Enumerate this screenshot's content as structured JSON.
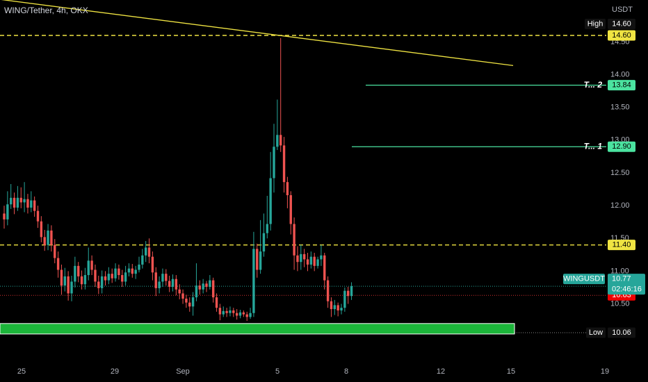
{
  "symbol_title": "WING/Tether, 4h, OKX",
  "currency": "USDT",
  "colors": {
    "up": "#26a69a",
    "down": "#ef5350",
    "trendline": "#f0e442",
    "level_dashed": "#f0e442",
    "target_line": "#4be3a0",
    "support_zone": "#1cb53a",
    "current_price": "#26a69a",
    "red_line": "#d32f2f"
  },
  "chart_data": {
    "type": "candlestick",
    "y_axis_ticks": [
      "10.50",
      "11.00",
      "11.50",
      "12.00",
      "12.50",
      "13.00",
      "13.50",
      "14.00",
      "14.50"
    ],
    "x_axis_ticks": [
      "25",
      "29",
      "Sep",
      "5",
      "8",
      "12",
      "15",
      "19"
    ],
    "ylim": [
      9.6,
      15.2
    ],
    "candles": [
      [
        11.88,
        11.79,
        12.0,
        11.65
      ],
      [
        11.79,
        12.02,
        12.22,
        11.7
      ],
      [
        12.02,
        12.12,
        12.33,
        11.95
      ],
      [
        12.12,
        11.97,
        12.2,
        11.87
      ],
      [
        11.97,
        12.12,
        12.3,
        11.92
      ],
      [
        12.12,
        12.05,
        12.28,
        11.96
      ],
      [
        12.05,
        12.1,
        12.36,
        11.9
      ],
      [
        12.1,
        11.97,
        12.18,
        11.88
      ],
      [
        11.97,
        12.08,
        12.22,
        11.9
      ],
      [
        12.08,
        11.92,
        12.14,
        11.83
      ],
      [
        11.92,
        11.76,
        12.0,
        11.66
      ],
      [
        11.76,
        11.52,
        11.84,
        11.44
      ],
      [
        11.52,
        11.4,
        11.63,
        11.31
      ],
      [
        11.4,
        11.62,
        11.72,
        11.32
      ],
      [
        11.62,
        11.4,
        11.7,
        11.3
      ],
      [
        11.4,
        11.2,
        11.49,
        11.12
      ],
      [
        11.2,
        11.02,
        11.3,
        10.9
      ],
      [
        11.02,
        10.78,
        11.1,
        10.64
      ],
      [
        10.78,
        10.92,
        11.05,
        10.69
      ],
      [
        10.92,
        10.66,
        11.0,
        10.55
      ],
      [
        10.66,
        10.84,
        10.93,
        10.54
      ],
      [
        10.84,
        11.08,
        11.22,
        10.75
      ],
      [
        11.08,
        10.92,
        11.14,
        10.83
      ],
      [
        10.92,
        10.8,
        11.01,
        10.72
      ],
      [
        10.8,
        10.94,
        11.05,
        10.72
      ],
      [
        10.94,
        11.16,
        11.36,
        10.86
      ],
      [
        11.16,
        11.02,
        11.24,
        10.94
      ],
      [
        11.02,
        10.84,
        11.1,
        10.76
      ],
      [
        10.84,
        10.74,
        10.93,
        10.65
      ],
      [
        10.74,
        10.92,
        11.01,
        10.66
      ],
      [
        10.92,
        10.86,
        11.0,
        10.78
      ],
      [
        10.86,
        10.96,
        11.06,
        10.8
      ],
      [
        10.96,
        10.89,
        11.04,
        10.82
      ],
      [
        10.89,
        11.04,
        11.12,
        10.84
      ],
      [
        11.04,
        10.94,
        11.1,
        10.87
      ],
      [
        10.94,
        10.84,
        11.02,
        10.76
      ],
      [
        10.84,
        10.98,
        11.08,
        10.78
      ],
      [
        10.98,
        11.04,
        11.12,
        10.92
      ],
      [
        11.04,
        10.96,
        11.11,
        10.9
      ],
      [
        10.96,
        11.02,
        11.08,
        10.88
      ],
      [
        11.02,
        11.1,
        11.22,
        10.98
      ],
      [
        11.1,
        11.24,
        11.34,
        11.04
      ],
      [
        11.24,
        11.36,
        11.46,
        11.14
      ],
      [
        11.36,
        11.22,
        11.5,
        11.12
      ],
      [
        11.22,
        10.98,
        11.3,
        10.86
      ],
      [
        10.98,
        10.74,
        11.06,
        10.62
      ],
      [
        10.74,
        10.84,
        10.92,
        10.66
      ],
      [
        10.84,
        10.96,
        11.04,
        10.76
      ],
      [
        10.96,
        10.85,
        11.03,
        10.78
      ],
      [
        10.85,
        10.76,
        10.93,
        10.68
      ],
      [
        10.76,
        10.88,
        10.95,
        10.69
      ],
      [
        10.88,
        10.72,
        10.94,
        10.63
      ],
      [
        10.72,
        10.66,
        10.8,
        10.57
      ],
      [
        10.66,
        10.58,
        10.72,
        10.5
      ],
      [
        10.58,
        10.52,
        10.64,
        10.44
      ],
      [
        10.52,
        10.46,
        10.6,
        10.38
      ],
      [
        10.46,
        10.6,
        10.68,
        10.32
      ],
      [
        10.6,
        10.78,
        11.12,
        10.54
      ],
      [
        10.78,
        10.72,
        10.86,
        10.64
      ],
      [
        10.72,
        10.81,
        10.88,
        10.66
      ],
      [
        10.81,
        10.76,
        10.85,
        10.68
      ],
      [
        10.76,
        10.86,
        10.94,
        10.72
      ],
      [
        10.86,
        10.6,
        10.9,
        10.52
      ],
      [
        10.6,
        10.44,
        10.66,
        10.38
      ],
      [
        10.44,
        10.34,
        10.5,
        10.25
      ],
      [
        10.34,
        10.39,
        10.46,
        10.3
      ],
      [
        10.39,
        10.36,
        10.44,
        10.3
      ],
      [
        10.36,
        10.4,
        10.46,
        10.31
      ],
      [
        10.4,
        10.36,
        10.44,
        10.3
      ],
      [
        10.36,
        10.32,
        10.42,
        10.26
      ],
      [
        10.32,
        10.37,
        10.41,
        10.28
      ],
      [
        10.37,
        10.34,
        10.4,
        10.3
      ],
      [
        10.34,
        10.3,
        10.38,
        10.24
      ],
      [
        10.3,
        10.36,
        10.44,
        10.27
      ],
      [
        10.36,
        11.34,
        11.6,
        10.3
      ],
      [
        11.34,
        11.02,
        11.42,
        10.9
      ],
      [
        11.02,
        11.3,
        11.78,
        10.96
      ],
      [
        11.3,
        11.58,
        11.88,
        11.22
      ],
      [
        11.58,
        11.72,
        12.15,
        11.5
      ],
      [
        11.72,
        12.42,
        12.82,
        11.62
      ],
      [
        12.42,
        12.9,
        13.25,
        12.2
      ],
      [
        12.9,
        13.08,
        13.62,
        12.85
      ],
      [
        13.08,
        12.92,
        14.56,
        12.82
      ],
      [
        12.92,
        12.36,
        13.05,
        12.2
      ],
      [
        12.36,
        12.16,
        12.44,
        11.96
      ],
      [
        12.16,
        11.72,
        12.22,
        11.56
      ],
      [
        11.72,
        11.24,
        11.82,
        11.02
      ],
      [
        11.24,
        11.14,
        11.38,
        11.0
      ],
      [
        11.14,
        11.26,
        11.4,
        11.02
      ],
      [
        11.26,
        11.18,
        11.34,
        11.06
      ],
      [
        11.18,
        11.1,
        11.28,
        11.0
      ],
      [
        11.1,
        11.22,
        11.3,
        11.04
      ],
      [
        11.22,
        11.08,
        11.28,
        11.0
      ],
      [
        11.08,
        11.18,
        11.22,
        11.04
      ],
      [
        11.18,
        11.24,
        11.4,
        11.08
      ],
      [
        11.24,
        10.86,
        11.28,
        10.72
      ],
      [
        10.86,
        10.54,
        10.92,
        10.44
      ],
      [
        10.54,
        10.42,
        10.6,
        10.3
      ],
      [
        10.42,
        10.48,
        10.56,
        10.33
      ],
      [
        10.48,
        10.4,
        10.52,
        10.31
      ],
      [
        10.4,
        10.44,
        10.5,
        10.34
      ],
      [
        10.44,
        10.7,
        10.75,
        10.38
      ],
      [
        10.7,
        10.62,
        10.76,
        10.5
      ],
      [
        10.62,
        10.77,
        10.83,
        10.56
      ]
    ],
    "levels": {
      "high": {
        "label": "High",
        "value": "14.60"
      },
      "target2": {
        "label": "T... 2",
        "value": "13.84"
      },
      "target1": {
        "label": "T... 1",
        "value": "12.90"
      },
      "resistance": {
        "value": "11.40"
      },
      "current": {
        "label": "WINGUSDT",
        "value": "10.77",
        "countdown": "02:46:16"
      },
      "red_level": {
        "value": "10.63"
      },
      "low": {
        "label": "Low",
        "value": "10.06"
      }
    },
    "support_zone": [
      10.04,
      10.2
    ],
    "trendline": {
      "start_price": 15.15,
      "end_price": 14.14
    }
  }
}
